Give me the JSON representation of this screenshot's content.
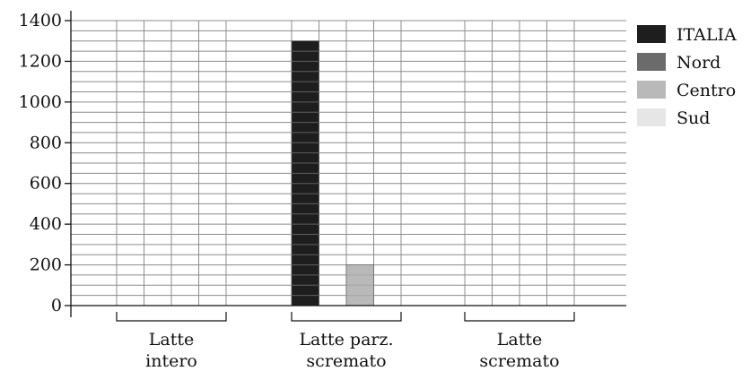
{
  "chart_data": {
    "type": "bar",
    "categories": [
      [
        "Latte",
        "intero"
      ],
      [
        "Latte parz.",
        "scremato"
      ],
      [
        "Latte",
        "scremato"
      ]
    ],
    "series": [
      {
        "name": "ITALIA",
        "color": "#1e1e1e",
        "values": [
          0,
          1300,
          0
        ]
      },
      {
        "name": "Nord",
        "color": "#6b6b6b",
        "values": [
          0,
          0,
          0
        ]
      },
      {
        "name": "Centro",
        "color": "#b9b9b9",
        "values": [
          0,
          200,
          0
        ]
      },
      {
        "name": "Sud",
        "color": "#e6e6e6",
        "values": [
          0,
          0,
          0
        ]
      }
    ],
    "yticks": [
      "0",
      "200",
      "400",
      "600",
      "800",
      "1000",
      "1200",
      "1400"
    ],
    "ylim": [
      0,
      1400
    ],
    "minor_grid_step": 50,
    "grid": true,
    "legend_position": "right"
  }
}
